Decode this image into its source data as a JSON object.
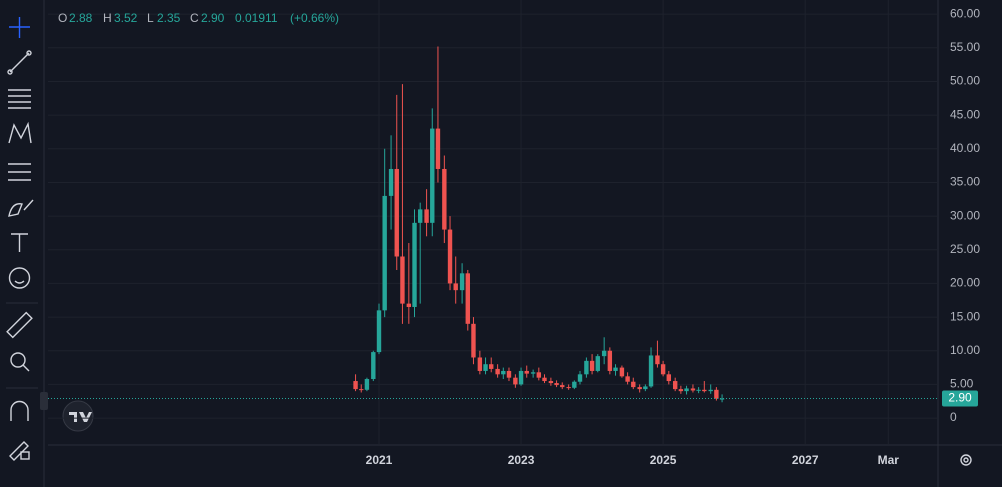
{
  "chart_data": {
    "type": "candlestick",
    "legend_labels": [
      "O",
      "H",
      "L",
      "C"
    ],
    "legend_values": [
      "2.88",
      "3.52",
      "2.35",
      "2.90"
    ],
    "change": "0.01911",
    "change_percent": "(+0.66%)",
    "last_price": 2.9,
    "last_price_label": "2.90",
    "up_color": "#26a69a",
    "down_color": "#ef5350",
    "grid": true,
    "xlim": [
      2016.34,
      2028.87
    ],
    "xticks": [
      2021,
      2023,
      2025,
      2027,
      {
        "value": 2028.17,
        "label": "Mar"
      }
    ],
    "ylim": [
      -4,
      62.1
    ],
    "yticks": [
      0,
      {
        "value": 5,
        "label": "5.00"
      },
      {
        "value": 10,
        "label": "10.00"
      },
      {
        "value": 15,
        "label": "15.00"
      },
      {
        "value": 20,
        "label": "20.00"
      },
      {
        "value": 25,
        "label": "25.00"
      },
      {
        "value": 30,
        "label": "30.00"
      },
      {
        "value": 35,
        "label": "35.00"
      },
      {
        "value": 40,
        "label": "40.00"
      },
      {
        "value": 45,
        "label": "45.00"
      },
      {
        "value": 50,
        "label": "50.00"
      },
      {
        "value": 55,
        "label": "55.00"
      },
      {
        "value": 60,
        "label": "60.00"
      }
    ],
    "x": [
      2020.67,
      2020.75,
      2020.83,
      2020.92,
      2021.0,
      2021.08,
      2021.17,
      2021.25,
      2021.33,
      2021.42,
      2021.5,
      2021.58,
      2021.67,
      2021.75,
      2021.83,
      2021.92,
      2022.0,
      2022.08,
      2022.17,
      2022.25,
      2022.33,
      2022.42,
      2022.5,
      2022.58,
      2022.67,
      2022.75,
      2022.83,
      2022.92,
      2023.0,
      2023.08,
      2023.17,
      2023.25,
      2023.33,
      2023.42,
      2023.5,
      2023.58,
      2023.67,
      2023.75,
      2023.83,
      2023.92,
      2024.0,
      2024.08,
      2024.17,
      2024.25,
      2024.33,
      2024.42,
      2024.5,
      2024.58,
      2024.67,
      2024.75,
      2024.83,
      2024.92,
      2025.0,
      2025.08,
      2025.17,
      2025.25,
      2025.33,
      2025.42,
      2025.5,
      2025.58,
      2025.67,
      2025.75,
      2025.83
    ],
    "open": [
      5.5,
      4.3,
      4.2,
      5.8,
      9.8,
      16,
      33,
      37,
      24,
      17,
      16.5,
      29,
      31,
      29,
      43,
      37,
      28,
      20,
      19,
      21.5,
      14,
      9,
      7,
      8,
      7.3,
      6.5,
      7,
      6,
      5,
      7,
      6.6,
      6.8,
      6,
      5.5,
      5.2,
      4.9,
      4.6,
      4.5,
      5.4,
      6.5,
      8.5,
      7,
      9.2,
      10,
      7,
      7.5,
      6.2,
      5.4,
      4.6,
      4.3,
      4.7,
      9.3,
      8,
      6.5,
      5.5,
      4.3,
      4,
      4.4,
      4.1,
      4.2,
      4,
      4.2,
      2.88
    ],
    "high": [
      6.5,
      5,
      6,
      10,
      17,
      40,
      42,
      48,
      49.6,
      26,
      31,
      32,
      34,
      46,
      55.2,
      39,
      30,
      24,
      23,
      22,
      15,
      10,
      9,
      9,
      8,
      7.5,
      7.5,
      6.5,
      7.5,
      7.8,
      7.2,
      7.5,
      6.5,
      6,
      5.6,
      5.3,
      5,
      5.6,
      7,
      9,
      9.5,
      9.5,
      12,
      10.5,
      8,
      7.8,
      6.8,
      6,
      5,
      5,
      10.5,
      11.5,
      8.5,
      7,
      6,
      4.8,
      4.8,
      5,
      4.6,
      5.5,
      5,
      4.6,
      3.52
    ],
    "low": [
      4,
      3.8,
      4,
      5.5,
      9.5,
      15,
      28,
      22,
      14,
      14,
      15,
      17,
      27,
      27,
      35,
      26,
      19,
      17,
      17,
      13,
      8,
      6.5,
      6.5,
      6.8,
      6,
      5.8,
      5.5,
      4.5,
      4.8,
      6,
      6,
      5.6,
      5.2,
      4.8,
      4.6,
      4.3,
      4.2,
      4.3,
      5,
      6,
      6.5,
      6.8,
      8,
      6.5,
      6.3,
      6,
      5,
      4.3,
      3.8,
      4,
      4.5,
      7.5,
      6.2,
      5,
      4,
      3.6,
      3.5,
      3.8,
      3.7,
      3.8,
      3.6,
      2.6,
      2.35
    ],
    "close": [
      4.3,
      4.2,
      5.8,
      9.8,
      16,
      33,
      37,
      24,
      17,
      16.5,
      29,
      31,
      29,
      43,
      37,
      28,
      20,
      19,
      21.5,
      14,
      9,
      7,
      8,
      7.3,
      6.5,
      7,
      6,
      5,
      7,
      6.6,
      6.8,
      6,
      5.5,
      5.2,
      4.9,
      4.6,
      4.5,
      5.4,
      6.5,
      8.5,
      7,
      9.2,
      10,
      7,
      7.5,
      6.2,
      5.4,
      4.6,
      4.3,
      4.7,
      9.3,
      8,
      6.5,
      5.5,
      4.3,
      4,
      4.4,
      4.1,
      4.2,
      4,
      4.2,
      2.88,
      2.9
    ]
  }
}
